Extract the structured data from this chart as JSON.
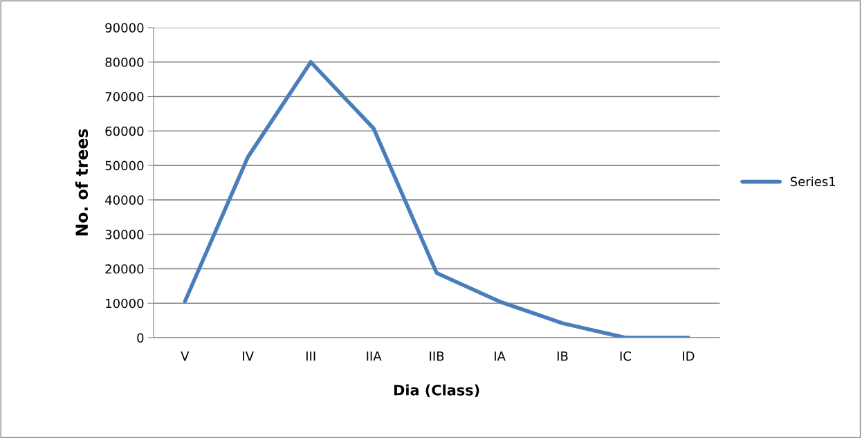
{
  "chart_data": {
    "type": "line",
    "xlabel": "Dia (Class)",
    "ylabel": "No. of trees",
    "categories": [
      "V",
      "IV",
      "III",
      "IIA",
      "IIB",
      "IA",
      "IB",
      "IC",
      "ID"
    ],
    "series": [
      {
        "name": "Series1",
        "color": "#4a7ebb",
        "values": [
          10500,
          52400,
          80000,
          60700,
          18800,
          10500,
          4200,
          0,
          0
        ]
      }
    ],
    "ylim": [
      0,
      90000
    ],
    "yticks": [
      0,
      10000,
      20000,
      30000,
      40000,
      50000,
      60000,
      70000,
      80000,
      90000
    ],
    "grid": "y",
    "legend": "right",
    "marker": "none",
    "line_style": "solid"
  }
}
